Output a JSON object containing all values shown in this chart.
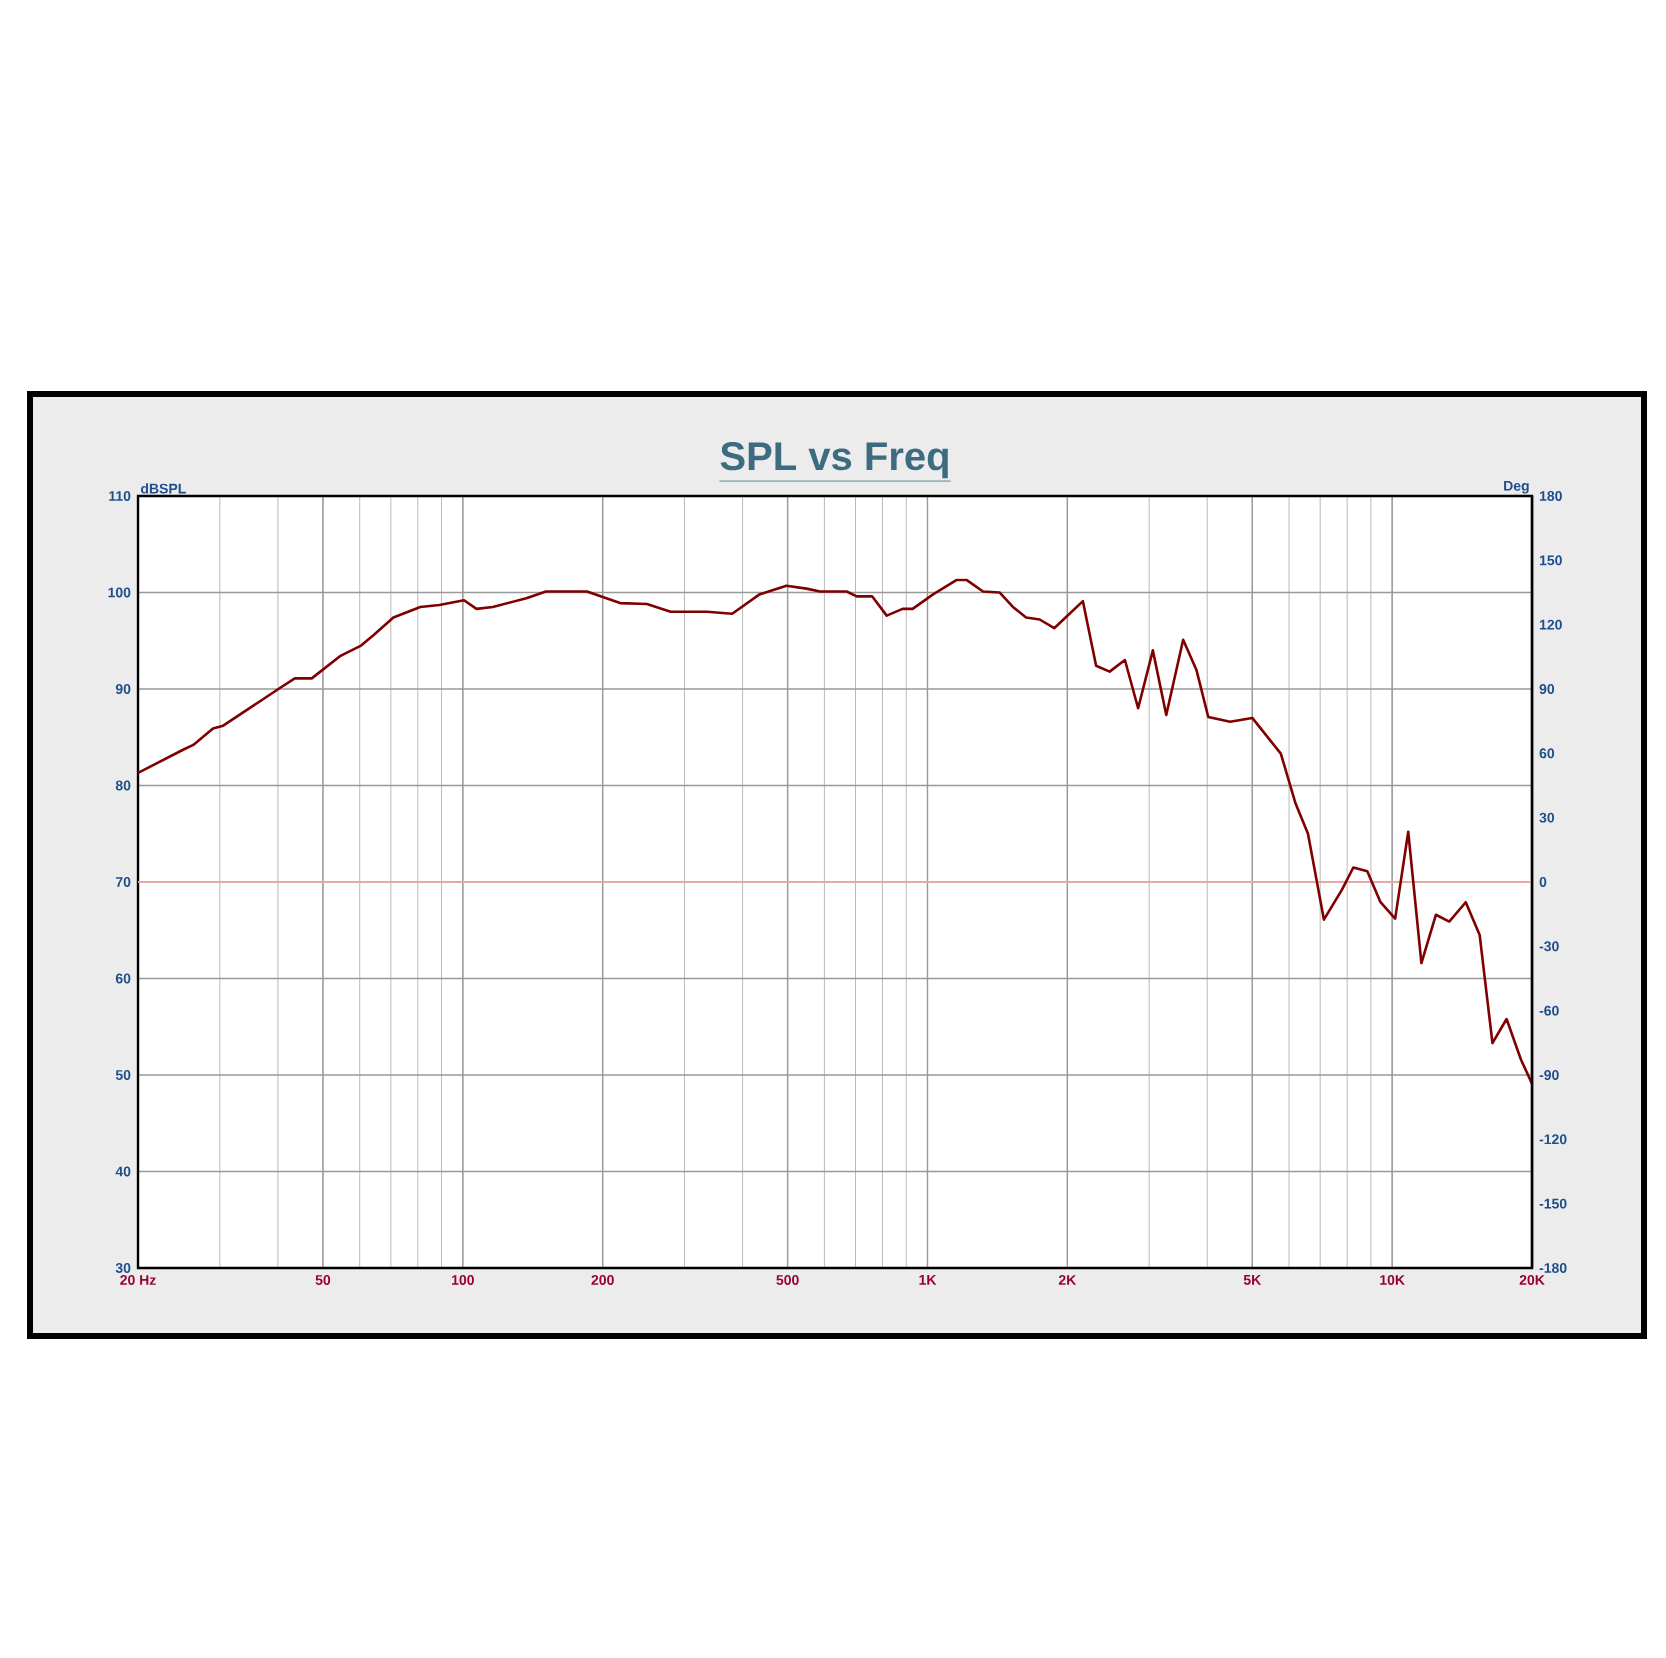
{
  "chart_data": {
    "type": "line",
    "title": "SPL vs Freq",
    "ylabel": "dBSPL",
    "y2label": "Deg",
    "x": [
      20,
      25,
      26.3,
      29,
      30.5,
      40.4,
      43.5,
      47.3,
      54.4,
      60.4,
      64.3,
      70.9,
      81,
      89,
      100.6,
      107,
      116,
      137,
      151,
      185,
      218,
      249,
      280,
      335,
      380,
      435,
      497,
      549,
      587,
      670,
      704,
      760,
      817,
      884,
      929,
      1028,
      1156,
      1213,
      1317,
      1429,
      1527,
      1630,
      1744,
      1874,
      2160,
      2306,
      2466,
      2660,
      2840,
      3055,
      3265,
      3550,
      3790,
      4020,
      4480,
      5000,
      5760,
      6200,
      6590,
      7130,
      7800,
      8250,
      8840,
      9440,
      10150,
      10830,
      11560,
      12420,
      13270,
      14400,
      15430,
      16440,
      17630,
      18930,
      20000
    ],
    "series": [
      {
        "color": "#800000",
        "values": [
          81.3,
          83.7,
          84.2,
          85.9,
          86.2,
          90.1,
          91.1,
          91.1,
          93.4,
          94.5,
          95.6,
          97.4,
          98.5,
          98.7,
          99.2,
          98.3,
          98.5,
          99.4,
          100.1,
          100.1,
          98.9,
          98.8,
          98.0,
          98.0,
          97.8,
          99.8,
          100.7,
          100.4,
          100.1,
          100.1,
          99.6,
          99.6,
          97.6,
          98.3,
          98.3,
          99.8,
          101.3,
          101.3,
          100.1,
          100.0,
          98.5,
          97.4,
          97.2,
          96.3,
          99.1,
          92.4,
          91.8,
          93.0,
          88.0,
          94.0,
          87.3,
          95.1,
          92.0,
          87.1,
          86.6,
          87.0,
          83.3,
          78.1,
          75.0,
          66.1,
          69.2,
          71.5,
          71.1,
          67.9,
          66.2,
          75.2,
          61.6,
          66.6,
          65.9,
          67.9,
          64.5,
          53.3,
          55.8,
          51.6,
          49.1
        ]
      }
    ],
    "log": "x",
    "xlim": [
      20,
      20000
    ],
    "xticks": [
      {
        "value": 20,
        "label": "20 Hz"
      },
      50,
      100,
      200,
      500,
      {
        "value": 1000,
        "label": "1K"
      },
      {
        "value": 2000,
        "label": "2K"
      },
      {
        "value": 5000,
        "label": "5K"
      },
      {
        "value": 10000,
        "label": "10K"
      },
      {
        "value": 20000,
        "label": "20K"
      }
    ],
    "ylim": [
      30,
      110
    ],
    "yticks": [
      30,
      40,
      50,
      60,
      70,
      80,
      90,
      100,
      110
    ],
    "y2lim": [
      -180,
      180
    ],
    "y2ticks": [
      -180,
      -150,
      -120,
      -90,
      -60,
      -30,
      0,
      30,
      60,
      90,
      120,
      150,
      180
    ],
    "ref_lines": [
      {
        "axis": "y",
        "value": 70,
        "color": "#e8a8a8"
      }
    ],
    "grid": true
  }
}
